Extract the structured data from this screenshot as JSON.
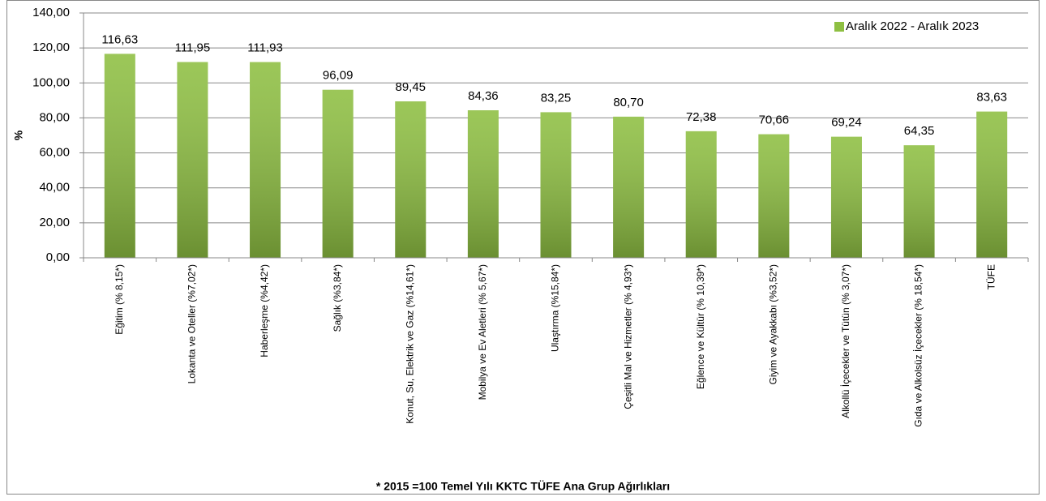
{
  "chart_data": {
    "type": "bar",
    "ylabel": "%",
    "footnote": "*  2015 =100 Temel Yılı KKTC TÜFE Ana Grup Ağırlıkları",
    "categories": [
      "Eğitim (% 8,15*)",
      "Lokanta ve Oteller (%7,02*)",
      "Haberleşme (%4,42*)",
      "Sağlık (%3,84*)",
      "Konut, Su, Elektrik ve Gaz (%14,61*)",
      "Mobilya ve Ev Aletleri (% 5,67*)",
      "Ulaştırma (%15,84*)",
      "Çeşitli Mal ve Hizmetler (% 4,93*)",
      "Eğlence ve Kültür (% 10,39*)",
      "Giyim ve Ayakkabı (%3,52*)",
      "Alkollü İçecekler ve Tütün (% 3,07*)",
      "Gıda ve Alkolsüz İçecekler (% 18,54*)",
      "TÜFE"
    ],
    "series": [
      {
        "name": "Aralık 2022 - Aralık 2023",
        "color": "#8ebf42",
        "values": [
          116.63,
          111.95,
          111.93,
          96.09,
          89.45,
          84.36,
          83.25,
          80.7,
          72.38,
          70.66,
          69.24,
          64.35,
          83.63
        ],
        "value_labels": [
          "116,63",
          "111,95",
          "111,93",
          "96,09",
          "89,45",
          "84,36",
          "83,25",
          "80,70",
          "72,38",
          "70,66",
          "69,24",
          "64,35",
          "83,63"
        ]
      }
    ],
    "ylim": [
      0,
      140
    ],
    "yticks": [
      {
        "value": 0,
        "label": "0,00"
      },
      {
        "value": 20,
        "label": "20,00"
      },
      {
        "value": 40,
        "label": "40,00"
      },
      {
        "value": 60,
        "label": "60,00"
      },
      {
        "value": 80,
        "label": "80,00"
      },
      {
        "value": 100,
        "label": "100,00"
      },
      {
        "value": 120,
        "label": "120,00"
      },
      {
        "value": 140,
        "label": "140,00"
      }
    ],
    "grid": true,
    "legend": "upper right"
  }
}
